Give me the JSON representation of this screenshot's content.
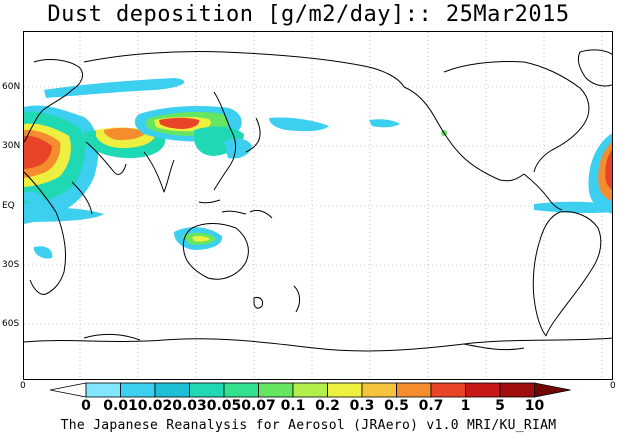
{
  "title": "Dust deposition [g/m2/day]:: 25Mar2015",
  "footer": "The Japanese Reanalysis for Aerosol (JRAero) v1.0 MRI/KU_RIAM",
  "lat_labels": [
    "60N",
    "30N",
    "EQ",
    "30S",
    "60S"
  ],
  "axis_end_labels": {
    "left": "0",
    "right": "0"
  },
  "colorbar": {
    "labels": [
      "0",
      "0.01",
      "0.02",
      "0.03",
      "0.05",
      "0.07",
      "0.1",
      "0.2",
      "0.3",
      "0.5",
      "0.7",
      "1",
      "5",
      "10"
    ],
    "colors": [
      "#ffffff",
      "#82e6ff",
      "#3ccff0",
      "#1fbfd8",
      "#1fd8b4",
      "#33e090",
      "#66e660",
      "#b2ef4a",
      "#eef040",
      "#f5c43c",
      "#f58c2e",
      "#e84428",
      "#c81818",
      "#a00e0e",
      "#700808"
    ]
  },
  "dust_color_scale": [
    "#3ccff0",
    "#1fd8b4",
    "#66e660",
    "#eef040",
    "#f58c2e",
    "#e84428",
    "#b40f0f"
  ]
}
